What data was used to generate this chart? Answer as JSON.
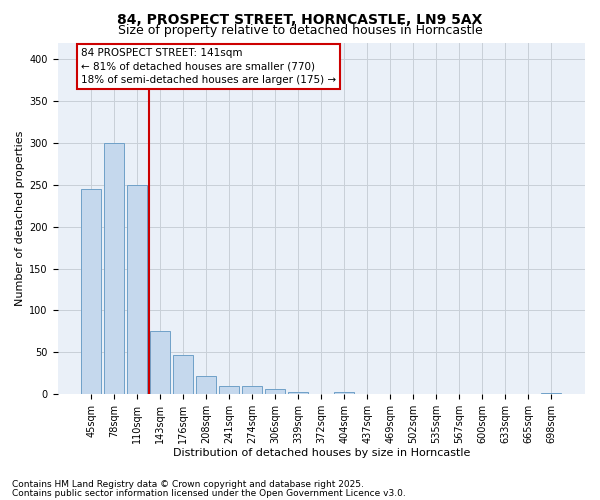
{
  "title1": "84, PROSPECT STREET, HORNCASTLE, LN9 5AX",
  "title2": "Size of property relative to detached houses in Horncastle",
  "xlabel": "Distribution of detached houses by size in Horncastle",
  "ylabel": "Number of detached properties",
  "categories": [
    "45sqm",
    "78sqm",
    "110sqm",
    "143sqm",
    "176sqm",
    "208sqm",
    "241sqm",
    "274sqm",
    "306sqm",
    "339sqm",
    "372sqm",
    "404sqm",
    "437sqm",
    "469sqm",
    "502sqm",
    "535sqm",
    "567sqm",
    "600sqm",
    "633sqm",
    "665sqm",
    "698sqm"
  ],
  "values": [
    245,
    300,
    250,
    75,
    47,
    22,
    10,
    10,
    6,
    3,
    0,
    3,
    0,
    0,
    0,
    0,
    0,
    0,
    0,
    0,
    2
  ],
  "bar_color": "#c5d8ed",
  "bar_edge_color": "#6fa0c8",
  "vline_index": 2,
  "vline_color": "#cc0000",
  "annotation_line1": "84 PROSPECT STREET: 141sqm",
  "annotation_line2": "← 81% of detached houses are smaller (770)",
  "annotation_line3": "18% of semi-detached houses are larger (175) →",
  "annot_facecolor": "#ffffff",
  "annot_edgecolor": "#cc0000",
  "ylim": [
    0,
    420
  ],
  "yticks": [
    0,
    50,
    100,
    150,
    200,
    250,
    300,
    350,
    400
  ],
  "footer1": "Contains HM Land Registry data © Crown copyright and database right 2025.",
  "footer2": "Contains public sector information licensed under the Open Government Licence v3.0.",
  "fig_facecolor": "#ffffff",
  "ax_facecolor": "#eaf0f8",
  "grid_color": "#c8cfd8",
  "title1_fs": 10,
  "title2_fs": 9,
  "xlabel_fs": 8,
  "ylabel_fs": 8,
  "tick_fs": 7,
  "annot_fs": 7.5,
  "footer_fs": 6.5
}
